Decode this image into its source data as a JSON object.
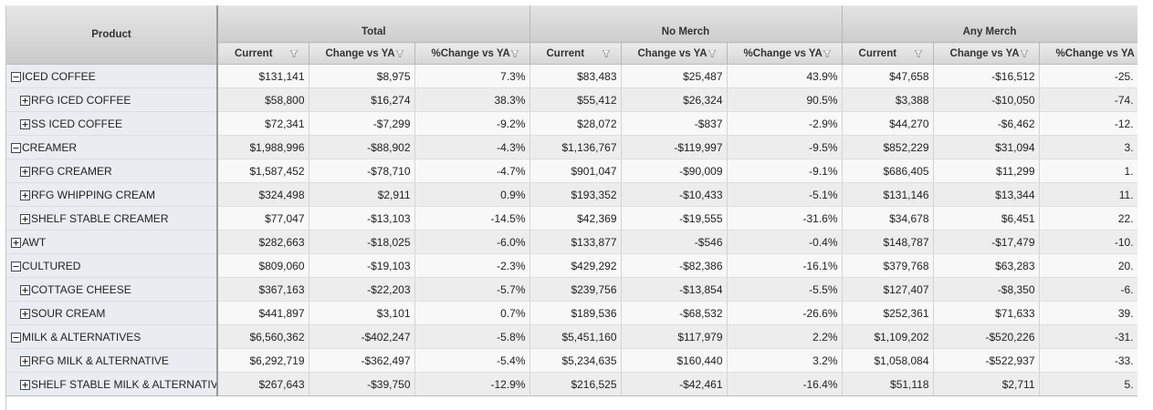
{
  "header": {
    "product": "Product",
    "groups": [
      {
        "title": "Total",
        "columns": [
          "Current",
          "Change vs YA",
          "%Change vs YA"
        ]
      },
      {
        "title": "No Merch",
        "columns": [
          "Current",
          "Change vs YA",
          "%Change vs YA"
        ]
      },
      {
        "title": "Any Merch",
        "columns": [
          "Current",
          "Change vs YA",
          "%Change vs YA"
        ]
      }
    ]
  },
  "rows": [
    {
      "label": "ICED COFFEE",
      "expanded": true,
      "values": [
        "$131,141",
        "$8,975",
        "7.3%",
        "$83,483",
        "$25,487",
        "43.9%",
        "$47,658",
        "-$16,512",
        "-25."
      ],
      "children": [
        {
          "label": "RFG ICED COFFEE",
          "values": [
            "$58,800",
            "$16,274",
            "38.3%",
            "$55,412",
            "$26,324",
            "90.5%",
            "$3,388",
            "-$10,050",
            "-74."
          ]
        },
        {
          "label": "SS ICED COFFEE",
          "values": [
            "$72,341",
            "-$7,299",
            "-9.2%",
            "$28,072",
            "-$837",
            "-2.9%",
            "$44,270",
            "-$6,462",
            "-12."
          ]
        }
      ]
    },
    {
      "label": "CREAMER",
      "expanded": true,
      "values": [
        "$1,988,996",
        "-$88,902",
        "-4.3%",
        "$1,136,767",
        "-$119,997",
        "-9.5%",
        "$852,229",
        "$31,094",
        "3."
      ],
      "children": [
        {
          "label": "RFG CREAMER",
          "values": [
            "$1,587,452",
            "-$78,710",
            "-4.7%",
            "$901,047",
            "-$90,009",
            "-9.1%",
            "$686,405",
            "$11,299",
            "1."
          ]
        },
        {
          "label": "RFG WHIPPING CREAM",
          "values": [
            "$324,498",
            "$2,911",
            "0.9%",
            "$193,352",
            "-$10,433",
            "-5.1%",
            "$131,146",
            "$13,344",
            "11."
          ]
        },
        {
          "label": "SHELF STABLE CREAMER",
          "values": [
            "$77,047",
            "-$13,103",
            "-14.5%",
            "$42,369",
            "-$19,555",
            "-31.6%",
            "$34,678",
            "$6,451",
            "22."
          ]
        }
      ]
    },
    {
      "label": "AWT",
      "expanded": false,
      "values": [
        "$282,663",
        "-$18,025",
        "-6.0%",
        "$133,877",
        "-$546",
        "-0.4%",
        "$148,787",
        "-$17,479",
        "-10."
      ]
    },
    {
      "label": "CULTURED",
      "expanded": true,
      "values": [
        "$809,060",
        "-$19,103",
        "-2.3%",
        "$429,292",
        "-$82,386",
        "-16.1%",
        "$379,768",
        "$63,283",
        "20."
      ],
      "children": [
        {
          "label": "COTTAGE CHEESE",
          "values": [
            "$367,163",
            "-$22,203",
            "-5.7%",
            "$239,756",
            "-$13,854",
            "-5.5%",
            "$127,407",
            "-$8,350",
            "-6."
          ]
        },
        {
          "label": "SOUR CREAM",
          "values": [
            "$441,897",
            "$3,101",
            "0.7%",
            "$189,536",
            "-$68,532",
            "-26.6%",
            "$252,361",
            "$71,633",
            "39."
          ]
        }
      ]
    },
    {
      "label": "MILK & ALTERNATIVES",
      "expanded": true,
      "values": [
        "$6,560,362",
        "-$402,247",
        "-5.8%",
        "$5,451,160",
        "$117,979",
        "2.2%",
        "$1,109,202",
        "-$520,226",
        "-31."
      ],
      "children": [
        {
          "label": "RFG MILK & ALTERNATIVE",
          "values": [
            "$6,292,719",
            "-$362,497",
            "-5.4%",
            "$5,234,635",
            "$160,440",
            "3.2%",
            "$1,058,084",
            "-$522,937",
            "-33."
          ]
        },
        {
          "label": "SHELF STABLE MILK & ALTERNATIVE",
          "values": [
            "$267,643",
            "-$39,750",
            "-12.9%",
            "$216,525",
            "-$42,461",
            "-16.4%",
            "$51,118",
            "$2,711",
            "5."
          ]
        }
      ]
    }
  ]
}
